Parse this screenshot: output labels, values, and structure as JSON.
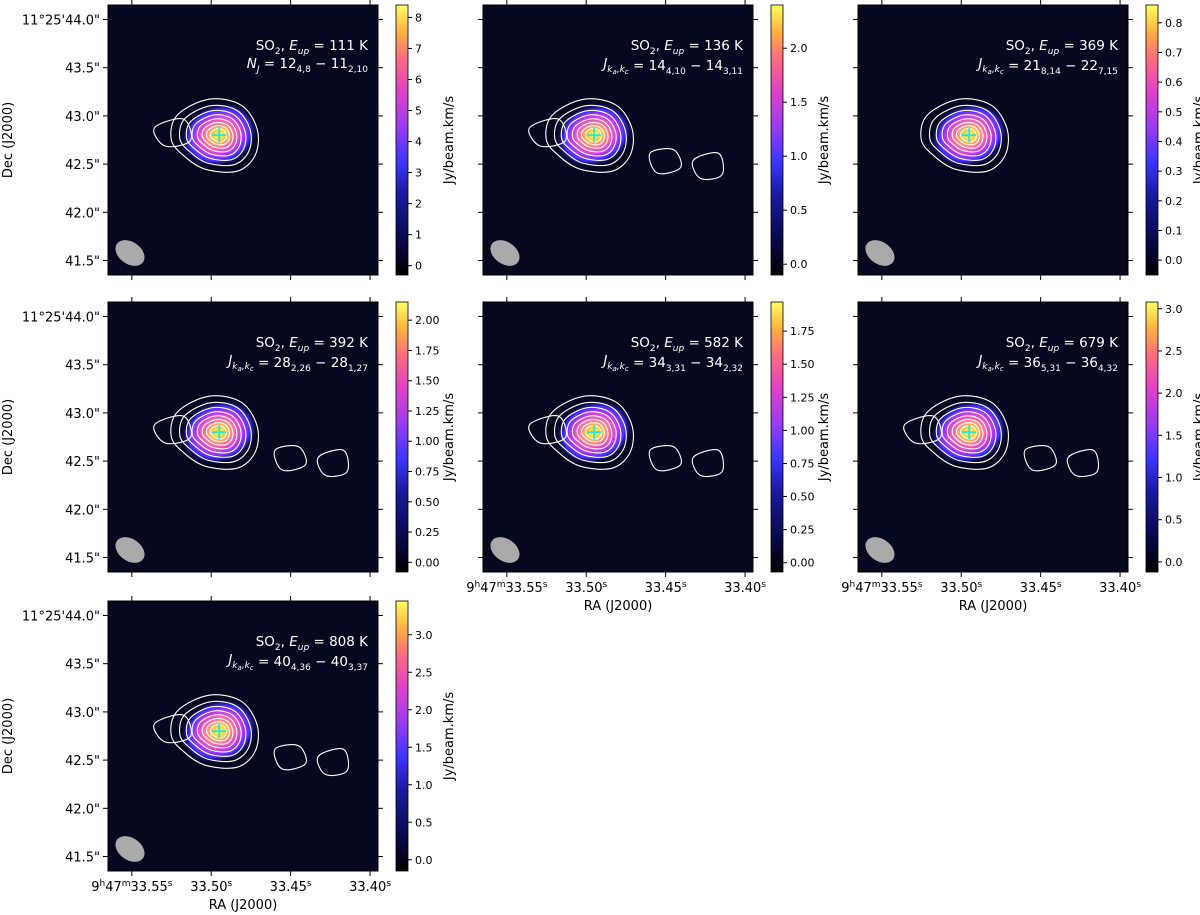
{
  "figure": {
    "x_axis_label": "RA (J2000)",
    "y_axis_label": "Dec (J2000)",
    "x_tick_labels": [
      {
        "h": "9",
        "m": "47",
        "s": "33.55",
        "full": true
      },
      {
        "s": "33.50",
        "full": false
      },
      {
        "s": "33.45",
        "full": false
      },
      {
        "s": "33.40",
        "full": false
      }
    ],
    "y_tick_labels": [
      "11°25'44.0\"",
      "43.5\"",
      "43.0\"",
      "42.5\"",
      "42.0\"",
      "41.5\""
    ],
    "colorbar_label": "Jy/beam.km/s",
    "species": "SO",
    "species_sub": "2",
    "colors": {
      "background": "#05081e",
      "contour": "#ffffff",
      "beam": "#aaaaaa",
      "marker": "#2ee6d8"
    }
  },
  "chart_data": [
    {
      "type": "heatmap",
      "E_up": "111",
      "qn_label": "N",
      "qn_label_sub": "J",
      "transition": [
        {
          "n": "12",
          "sub": "4,8"
        },
        {
          "n": "11",
          "sub": "2,10"
        }
      ],
      "cbar_min": -0.3,
      "cbar_max": 8.4,
      "cbar_ticks": [
        0,
        1,
        2,
        3,
        4,
        5,
        6,
        7,
        8
      ],
      "cbar_tick_labels": [
        "0",
        "1",
        "2",
        "3",
        "4",
        "5",
        "6",
        "7",
        "8"
      ],
      "peak_ra_s": 33.495,
      "peak_dec_arcsec": 42.8
    },
    {
      "type": "heatmap",
      "E_up": "136",
      "qn_label": "J",
      "qn_label_sub": "k",
      "transition": [
        {
          "n": "14",
          "sub": "4,10"
        },
        {
          "n": "14",
          "sub": "3,11"
        }
      ],
      "cbar_min": -0.1,
      "cbar_max": 2.4,
      "cbar_ticks": [
        0,
        0.5,
        1,
        1.5,
        2
      ],
      "cbar_tick_labels": [
        "0.0",
        "0.5",
        "1.0",
        "1.5",
        "2.0"
      ],
      "peak_ra_s": 33.495,
      "peak_dec_arcsec": 42.8
    },
    {
      "type": "heatmap",
      "E_up": "369",
      "qn_label": "J",
      "qn_label_sub": "k",
      "transition": [
        {
          "n": "21",
          "sub": "8,14"
        },
        {
          "n": "22",
          "sub": "7,15"
        }
      ],
      "cbar_min": -0.05,
      "cbar_max": 0.86,
      "cbar_ticks": [
        0,
        0.1,
        0.2,
        0.3,
        0.4,
        0.5,
        0.6,
        0.7,
        0.8
      ],
      "cbar_tick_labels": [
        "0.0",
        "0.1",
        "0.2",
        "0.3",
        "0.4",
        "0.5",
        "0.6",
        "0.7",
        "0.8"
      ],
      "peak_ra_s": 33.495,
      "peak_dec_arcsec": 42.8
    },
    {
      "type": "heatmap",
      "E_up": "392",
      "qn_label": "J",
      "qn_label_sub": "k",
      "transition": [
        {
          "n": "28",
          "sub": "2,26"
        },
        {
          "n": "28",
          "sub": "1,27"
        }
      ],
      "cbar_min": -0.08,
      "cbar_max": 2.15,
      "cbar_ticks": [
        0,
        0.25,
        0.5,
        0.75,
        1,
        1.25,
        1.5,
        1.75,
        2
      ],
      "cbar_tick_labels": [
        "0.00",
        "0.25",
        "0.50",
        "0.75",
        "1.00",
        "1.25",
        "1.50",
        "1.75",
        "2.00"
      ],
      "peak_ra_s": 33.495,
      "peak_dec_arcsec": 42.8
    },
    {
      "type": "heatmap",
      "E_up": "582",
      "qn_label": "J",
      "qn_label_sub": "k",
      "transition": [
        {
          "n": "34",
          "sub": "3,31"
        },
        {
          "n": "34",
          "sub": "2,32"
        }
      ],
      "cbar_min": -0.07,
      "cbar_max": 1.97,
      "cbar_ticks": [
        0,
        0.25,
        0.5,
        0.75,
        1,
        1.25,
        1.5,
        1.75
      ],
      "cbar_tick_labels": [
        "0.00",
        "0.25",
        "0.50",
        "0.75",
        "1.00",
        "1.25",
        "1.50",
        "1.75"
      ],
      "peak_ra_s": 33.495,
      "peak_dec_arcsec": 42.8
    },
    {
      "type": "heatmap",
      "E_up": "679",
      "qn_label": "J",
      "qn_label_sub": "k",
      "transition": [
        {
          "n": "36",
          "sub": "5,31"
        },
        {
          "n": "36",
          "sub": "4,32"
        }
      ],
      "cbar_min": -0.12,
      "cbar_max": 3.08,
      "cbar_ticks": [
        0,
        0.5,
        1,
        1.5,
        2,
        2.5,
        3
      ],
      "cbar_tick_labels": [
        "0.0",
        "0.5",
        "1.0",
        "1.5",
        "2.0",
        "2.5",
        "3.0"
      ],
      "peak_ra_s": 33.495,
      "peak_dec_arcsec": 42.8
    },
    {
      "type": "heatmap",
      "E_up": "808",
      "qn_label": "J",
      "qn_label_sub": "k",
      "transition": [
        {
          "n": "40",
          "sub": "4,36"
        },
        {
          "n": "40",
          "sub": "3,37"
        }
      ],
      "cbar_min": -0.15,
      "cbar_max": 3.45,
      "cbar_ticks": [
        0,
        0.5,
        1,
        1.5,
        2,
        2.5,
        3
      ],
      "cbar_tick_labels": [
        "0.0",
        "0.5",
        "1.0",
        "1.5",
        "2.0",
        "2.5",
        "3.0"
      ],
      "peak_ra_s": 33.495,
      "peak_dec_arcsec": 42.8
    }
  ]
}
